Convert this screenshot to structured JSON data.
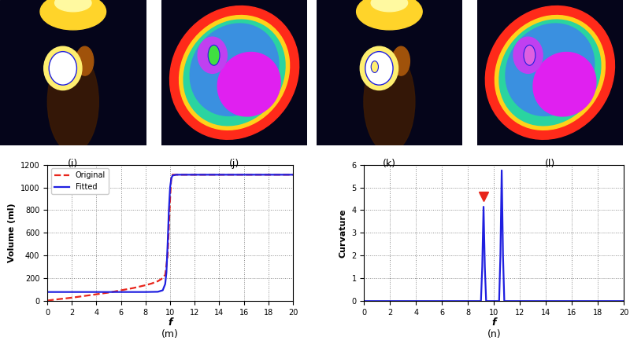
{
  "images": [
    {
      "label": "(i)"
    },
    {
      "label": "(j)"
    },
    {
      "label": "(k)"
    },
    {
      "label": "(l)"
    }
  ],
  "chart_data": [
    {
      "type": "line",
      "caption": "(m)",
      "x_label": "f",
      "y_label": "Volume (ml)",
      "xlim": [
        0,
        20
      ],
      "xticks": [
        0,
        2,
        4,
        6,
        8,
        10,
        12,
        14,
        16,
        18,
        20
      ],
      "ylim": [
        0,
        1200
      ],
      "yticks": [
        0,
        200,
        400,
        600,
        800,
        1000,
        1200
      ],
      "grid": true,
      "legend": "upper left",
      "series": [
        {
          "name": "Original",
          "color": "#e8251b",
          "line_style": "dashed",
          "x": [
            0,
            1,
            2,
            3,
            4,
            5,
            6,
            7,
            8,
            8.5,
            9,
            9.3,
            9.6,
            9.8,
            9.9,
            10.0,
            10.1,
            10.2,
            12,
            14,
            16,
            18,
            20
          ],
          "values": [
            5,
            18,
            30,
            45,
            60,
            75,
            95,
            115,
            140,
            155,
            175,
            195,
            230,
            400,
            650,
            900,
            1100,
            1112,
            1112,
            1112,
            1112,
            1112,
            1112
          ]
        },
        {
          "name": "Fitted",
          "color": "#1f1fe0",
          "line_style": "solid",
          "x": [
            0,
            2,
            4,
            6,
            8,
            9,
            9.4,
            9.6,
            9.7,
            9.8,
            9.9,
            10.0,
            10.1,
            10.2,
            10.5,
            12,
            14,
            16,
            18,
            20
          ],
          "values": [
            80,
            80,
            80,
            80,
            80,
            82,
            95,
            150,
            250,
            500,
            800,
            1000,
            1080,
            1105,
            1112,
            1112,
            1112,
            1112,
            1112,
            1112
          ]
        }
      ]
    },
    {
      "type": "line",
      "caption": "(n)",
      "x_label": "f",
      "y_label": "Curvature",
      "xlim": [
        0,
        20
      ],
      "xticks": [
        0,
        2,
        4,
        6,
        8,
        10,
        12,
        14,
        16,
        18,
        20
      ],
      "ylim": [
        0,
        6
      ],
      "yticks": [
        0,
        1,
        2,
        3,
        4,
        5,
        6
      ],
      "grid": true,
      "series": [
        {
          "name": "Curvature",
          "color": "#1f1fe0",
          "line_style": "solid",
          "x": [
            0,
            9.0,
            9.1,
            9.2,
            9.3,
            9.4,
            10.4,
            10.5,
            10.6,
            10.7,
            10.8,
            20
          ],
          "values": [
            0,
            0,
            1.5,
            4.15,
            1.5,
            0,
            0,
            2.0,
            5.75,
            2.0,
            0,
            0
          ]
        }
      ],
      "markers": [
        {
          "x": 9.2,
          "y": 4.6,
          "color": "#e8251b",
          "marker": "triangle_down"
        }
      ]
    }
  ]
}
